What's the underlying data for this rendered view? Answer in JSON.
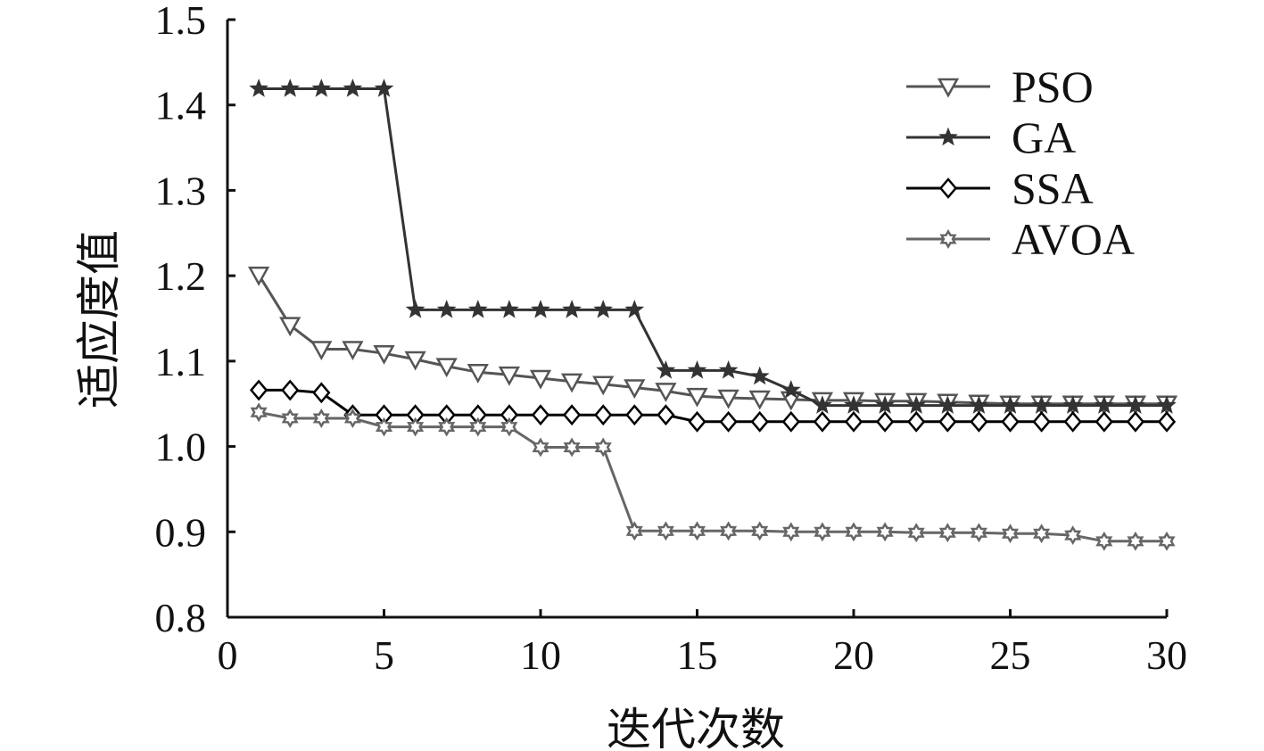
{
  "chart_data": {
    "type": "line",
    "xlabel": "迭代次数",
    "ylabel": "适应度值",
    "xlim": [
      0,
      30
    ],
    "ylim": [
      0.8,
      1.5
    ],
    "xticks": [
      "0",
      "5",
      "10",
      "15",
      "20",
      "25",
      "30"
    ],
    "yticks": [
      "0.8",
      "0.9",
      "1.0",
      "1.1",
      "1.2",
      "1.3",
      "1.4",
      "1.5"
    ],
    "grid": false,
    "legend_position": "top-right",
    "x": [
      1,
      2,
      3,
      4,
      5,
      6,
      7,
      8,
      9,
      10,
      11,
      12,
      13,
      14,
      15,
      16,
      17,
      18,
      19,
      20,
      21,
      22,
      23,
      24,
      25,
      26,
      27,
      28,
      29,
      30
    ],
    "series": [
      {
        "name": "PSO",
        "marker": "triangle-down",
        "color": "#555555",
        "values": [
          1.201,
          1.142,
          1.114,
          1.114,
          1.109,
          1.102,
          1.094,
          1.087,
          1.084,
          1.08,
          1.076,
          1.073,
          1.069,
          1.065,
          1.059,
          1.057,
          1.056,
          1.055,
          1.054,
          1.054,
          1.053,
          1.053,
          1.052,
          1.051,
          1.05,
          1.05,
          1.05,
          1.05,
          1.05,
          1.05
        ]
      },
      {
        "name": "GA",
        "marker": "star",
        "color": "#333333",
        "values": [
          1.419,
          1.419,
          1.419,
          1.419,
          1.419,
          1.16,
          1.16,
          1.16,
          1.16,
          1.16,
          1.16,
          1.16,
          1.16,
          1.089,
          1.089,
          1.089,
          1.082,
          1.066,
          1.048,
          1.048,
          1.048,
          1.048,
          1.048,
          1.048,
          1.048,
          1.048,
          1.048,
          1.048,
          1.048,
          1.048
        ]
      },
      {
        "name": "SSA",
        "marker": "diamond",
        "color": "#000000",
        "values": [
          1.066,
          1.066,
          1.063,
          1.037,
          1.037,
          1.037,
          1.037,
          1.037,
          1.037,
          1.037,
          1.037,
          1.037,
          1.037,
          1.037,
          1.029,
          1.029,
          1.029,
          1.029,
          1.029,
          1.029,
          1.029,
          1.029,
          1.029,
          1.029,
          1.029,
          1.029,
          1.029,
          1.029,
          1.029,
          1.029
        ]
      },
      {
        "name": "AVOA",
        "marker": "hexagram",
        "color": "#666666",
        "values": [
          1.04,
          1.033,
          1.033,
          1.033,
          1.023,
          1.023,
          1.023,
          1.023,
          1.023,
          0.999,
          0.999,
          0.999,
          0.901,
          0.901,
          0.901,
          0.901,
          0.901,
          0.9,
          0.9,
          0.9,
          0.9,
          0.899,
          0.899,
          0.899,
          0.898,
          0.898,
          0.896,
          0.889,
          0.889,
          0.889
        ]
      }
    ]
  }
}
